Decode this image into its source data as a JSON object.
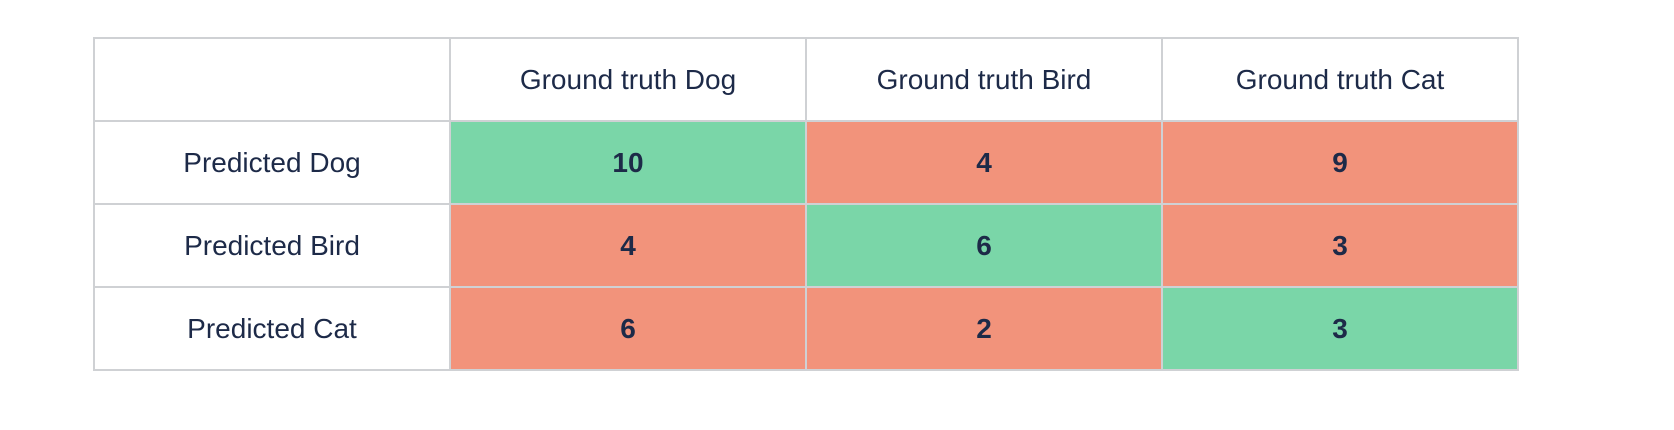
{
  "table": {
    "header": [
      "",
      "Ground truth Dog",
      "Ground truth Bird",
      "Ground truth Cat"
    ],
    "rows": [
      {
        "label": "Predicted Dog",
        "cells": [
          10,
          4,
          9
        ]
      },
      {
        "label": "Predicted Bird",
        "cells": [
          4,
          6,
          3
        ]
      },
      {
        "label": "Predicted Cat",
        "cells": [
          6,
          2,
          3
        ]
      }
    ]
  }
}
